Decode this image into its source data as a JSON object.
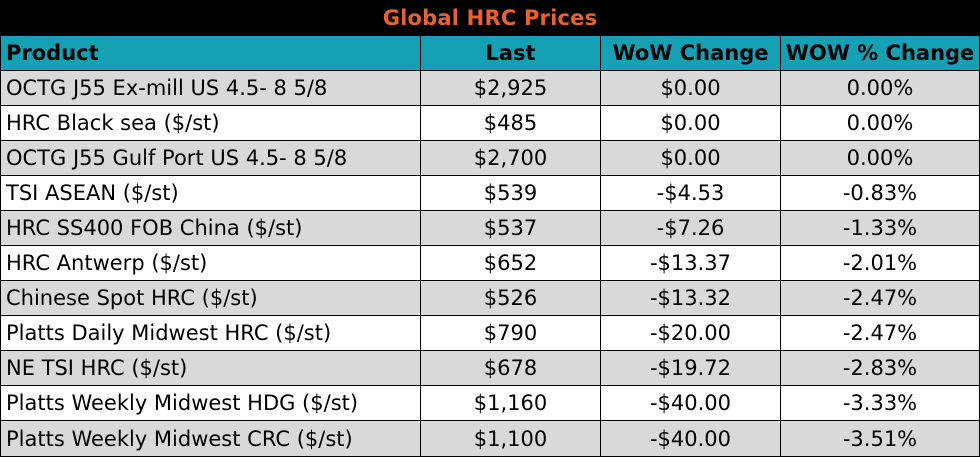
{
  "chart_data": {
    "type": "table",
    "title": "Global HRC Prices",
    "columns": [
      "Product",
      "Last",
      "WoW Change",
      "WOW % Change"
    ],
    "rows": [
      [
        "OCTG J55 Ex-mill US 4.5- 8 5/8",
        "$2,925",
        "$0.00",
        "0.00%"
      ],
      [
        "HRC Black sea ($/st)",
        "$485",
        "$0.00",
        "0.00%"
      ],
      [
        "OCTG J55 Gulf Port US 4.5- 8 5/8",
        "$2,700",
        "$0.00",
        "0.00%"
      ],
      [
        "TSI ASEAN ($/st)",
        "$539",
        "-$4.53",
        "-0.83%"
      ],
      [
        "HRC SS400 FOB China ($/st)",
        "$537",
        "-$7.26",
        "-1.33%"
      ],
      [
        "HRC Antwerp ($/st)",
        "$652",
        "-$13.37",
        "-2.01%"
      ],
      [
        "Chinese Spot HRC ($/st)",
        "$526",
        "-$13.32",
        "-2.47%"
      ],
      [
        "Platts Daily Midwest HRC ($/st)",
        "$790",
        "-$20.00",
        "-2.47%"
      ],
      [
        "NE TSI HRC ($/st)",
        "$678",
        "-$19.72",
        "-2.83%"
      ],
      [
        "Platts Weekly Midwest HDG ($/st)",
        "$1,160",
        "-$40.00",
        "-3.33%"
      ],
      [
        "Platts Weekly Midwest CRC ($/st)",
        "$1,100",
        "-$40.00",
        "-3.51%"
      ]
    ]
  },
  "colors": {
    "title_bg": "#000000",
    "title_text": "#e8622f",
    "header_bg": "#15a0b4",
    "row_shaded": "#d9d9d9",
    "row_white": "#ffffff"
  }
}
